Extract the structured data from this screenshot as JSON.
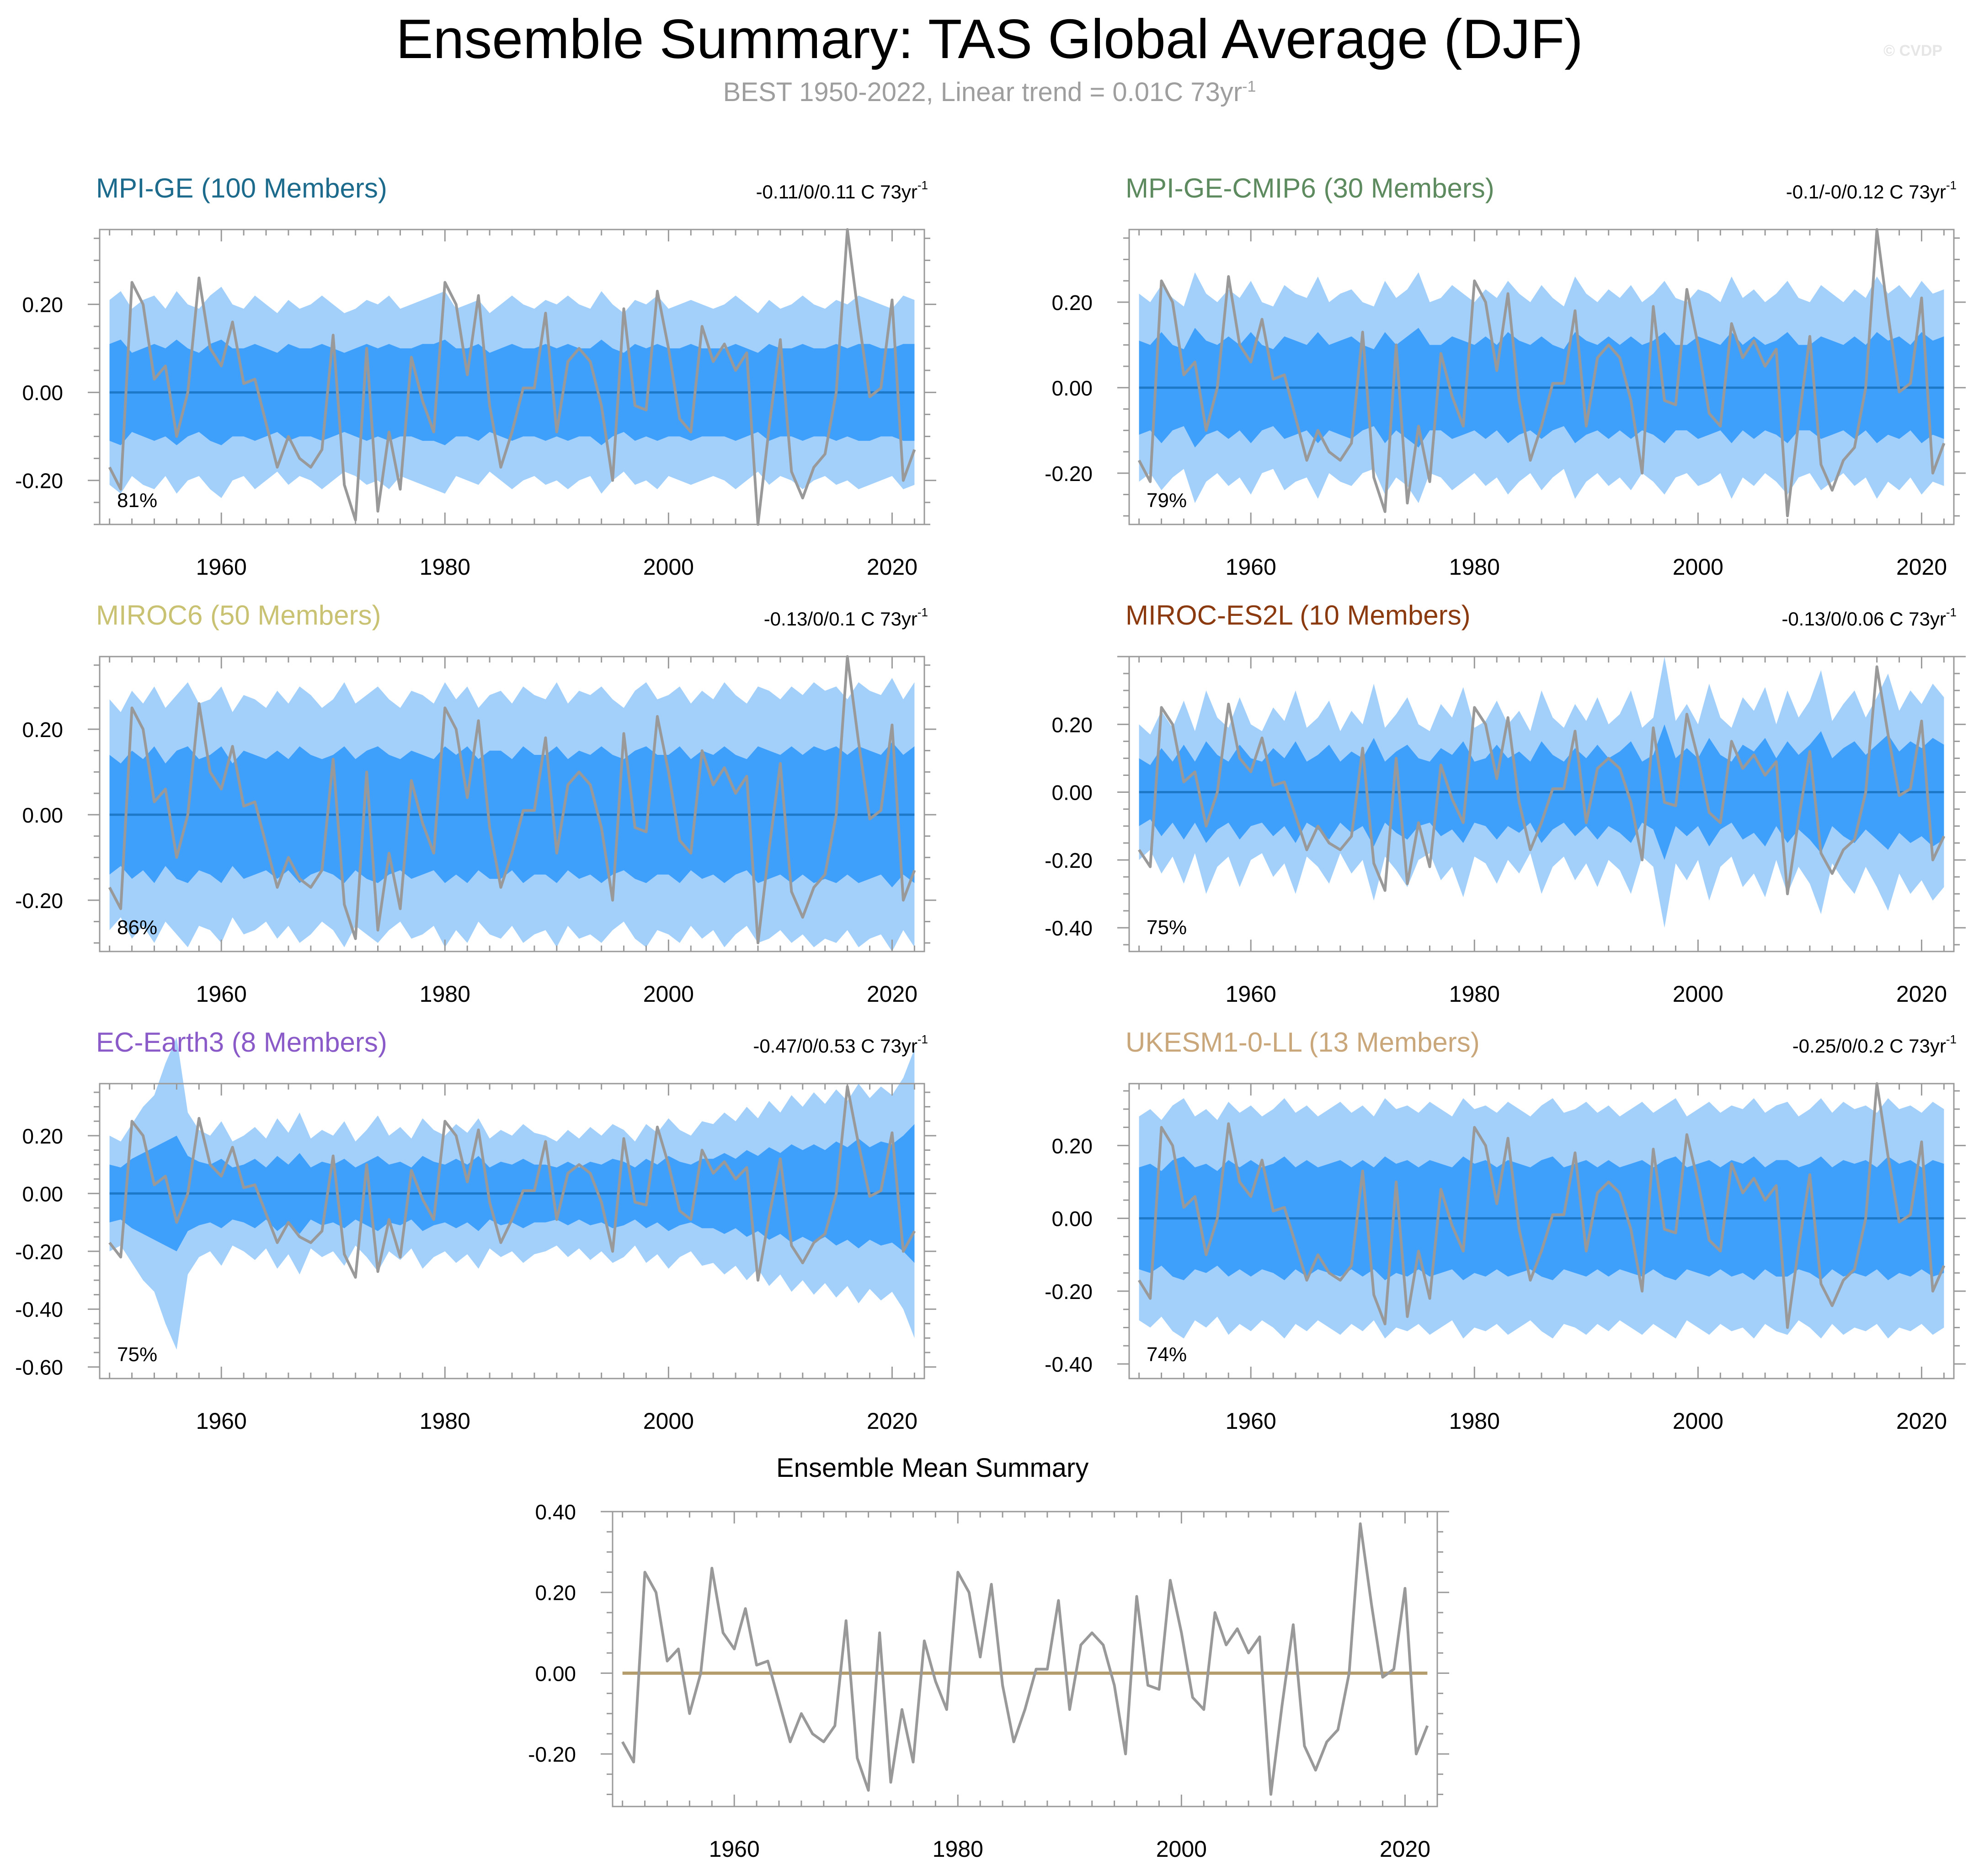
{
  "header": {
    "title": "Ensemble Summary: TAS Global Average (DJF)",
    "subtitle": "BEST 1950-2022, Linear trend = 0.01C 73yr",
    "subtitle_sup": "-1",
    "credit": "© CVDP"
  },
  "colors": {
    "outer_band": "#a3d0fb",
    "inner_band": "#3fa0fc",
    "ensemble_line": "#1e78c8",
    "obs_line": "#999999",
    "summary_zero_line": "#b59c6c",
    "frame": "#9a9a9a"
  },
  "chart_data": [
    {
      "type": "area",
      "title": "MPI-GE (100 Members)",
      "title_color": "#1c6a8c",
      "trend_label": "-0.11/0/0.11 C 73yr",
      "trend_sup": "-1",
      "percent_label": "81%",
      "xlim": [
        1950,
        2022
      ],
      "ylim": [
        -0.3,
        0.37
      ],
      "yticks": [
        -0.2,
        0.0,
        0.2
      ],
      "ytick_labels": [
        "-0.20",
        "0.00",
        "0.20"
      ],
      "xticks": [
        1960,
        1980,
        2000,
        2020
      ],
      "outer_halfwidth": [
        0.21,
        0.23,
        0.19,
        0.21,
        0.22,
        0.19,
        0.23,
        0.2,
        0.19,
        0.22,
        0.24,
        0.2,
        0.19,
        0.22,
        0.2,
        0.18,
        0.21,
        0.19,
        0.2,
        0.22,
        0.2,
        0.18,
        0.19,
        0.21,
        0.2,
        0.22,
        0.19,
        0.2,
        0.21,
        0.22,
        0.23,
        0.19,
        0.2,
        0.21,
        0.18,
        0.2,
        0.22,
        0.2,
        0.19,
        0.21,
        0.2,
        0.22,
        0.2,
        0.19,
        0.23,
        0.2,
        0.18,
        0.21,
        0.2,
        0.22,
        0.19,
        0.2,
        0.21,
        0.2,
        0.19,
        0.2,
        0.22,
        0.2,
        0.18,
        0.21,
        0.19,
        0.2,
        0.22,
        0.2,
        0.19,
        0.21,
        0.2,
        0.22,
        0.21,
        0.2,
        0.19,
        0.22,
        0.21
      ],
      "inner_halfwidth": [
        0.11,
        0.12,
        0.09,
        0.1,
        0.11,
        0.1,
        0.12,
        0.1,
        0.09,
        0.11,
        0.12,
        0.1,
        0.1,
        0.11,
        0.1,
        0.09,
        0.11,
        0.1,
        0.1,
        0.11,
        0.1,
        0.09,
        0.1,
        0.11,
        0.1,
        0.11,
        0.1,
        0.1,
        0.11,
        0.11,
        0.12,
        0.1,
        0.1,
        0.11,
        0.09,
        0.1,
        0.11,
        0.1,
        0.1,
        0.11,
        0.1,
        0.11,
        0.1,
        0.1,
        0.12,
        0.1,
        0.09,
        0.11,
        0.1,
        0.11,
        0.1,
        0.1,
        0.11,
        0.1,
        0.1,
        0.1,
        0.11,
        0.1,
        0.09,
        0.11,
        0.1,
        0.1,
        0.11,
        0.1,
        0.1,
        0.11,
        0.1,
        0.11,
        0.11,
        0.1,
        0.1,
        0.11,
        0.11
      ]
    },
    {
      "type": "area",
      "title": "MPI-GE-CMIP6 (30 Members)",
      "title_color": "#5d8a5e",
      "trend_label": "-0.1/-0/0.12 C 73yr",
      "trend_sup": "-1",
      "percent_label": "79%",
      "xlim": [
        1950,
        2022
      ],
      "ylim": [
        -0.32,
        0.37
      ],
      "yticks": [
        -0.2,
        0.0,
        0.2
      ],
      "ytick_labels": [
        "-0.20",
        "0.00",
        "0.20"
      ],
      "xticks": [
        1960,
        1980,
        2000,
        2020
      ],
      "outer_halfwidth": [
        0.22,
        0.2,
        0.24,
        0.21,
        0.19,
        0.27,
        0.22,
        0.2,
        0.23,
        0.21,
        0.25,
        0.2,
        0.19,
        0.24,
        0.22,
        0.21,
        0.26,
        0.2,
        0.22,
        0.23,
        0.2,
        0.19,
        0.25,
        0.21,
        0.23,
        0.27,
        0.2,
        0.21,
        0.24,
        0.22,
        0.2,
        0.23,
        0.21,
        0.25,
        0.22,
        0.2,
        0.24,
        0.21,
        0.19,
        0.26,
        0.22,
        0.2,
        0.23,
        0.21,
        0.24,
        0.2,
        0.22,
        0.25,
        0.21,
        0.2,
        0.23,
        0.22,
        0.2,
        0.26,
        0.21,
        0.23,
        0.2,
        0.22,
        0.25,
        0.21,
        0.2,
        0.24,
        0.22,
        0.2,
        0.23,
        0.21,
        0.26,
        0.22,
        0.24,
        0.21,
        0.25,
        0.22,
        0.23
      ],
      "inner_halfwidth": [
        0.11,
        0.1,
        0.13,
        0.1,
        0.09,
        0.14,
        0.11,
        0.1,
        0.12,
        0.1,
        0.13,
        0.1,
        0.09,
        0.12,
        0.11,
        0.1,
        0.13,
        0.1,
        0.11,
        0.12,
        0.1,
        0.09,
        0.13,
        0.1,
        0.12,
        0.14,
        0.1,
        0.1,
        0.12,
        0.11,
        0.1,
        0.12,
        0.1,
        0.13,
        0.11,
        0.1,
        0.12,
        0.1,
        0.09,
        0.13,
        0.11,
        0.1,
        0.12,
        0.1,
        0.12,
        0.1,
        0.11,
        0.13,
        0.1,
        0.1,
        0.12,
        0.11,
        0.1,
        0.13,
        0.1,
        0.12,
        0.1,
        0.11,
        0.13,
        0.1,
        0.1,
        0.12,
        0.11,
        0.1,
        0.12,
        0.1,
        0.13,
        0.11,
        0.12,
        0.1,
        0.13,
        0.11,
        0.12
      ]
    },
    {
      "type": "area",
      "title": "MIROC6 (50 Members)",
      "title_color": "#c9c273",
      "trend_label": "-0.13/0/0.1 C 73yr",
      "trend_sup": "-1",
      "percent_label": "86%",
      "xlim": [
        1950,
        2022
      ],
      "ylim": [
        -0.32,
        0.37
      ],
      "yticks": [
        -0.2,
        0.0,
        0.2
      ],
      "ytick_labels": [
        "-0.20",
        "0.00",
        "0.20"
      ],
      "xticks": [
        1960,
        1980,
        2000,
        2020
      ],
      "outer_halfwidth": [
        0.27,
        0.24,
        0.29,
        0.26,
        0.3,
        0.25,
        0.28,
        0.31,
        0.26,
        0.27,
        0.3,
        0.24,
        0.28,
        0.27,
        0.25,
        0.29,
        0.26,
        0.3,
        0.28,
        0.25,
        0.27,
        0.31,
        0.26,
        0.28,
        0.3,
        0.27,
        0.25,
        0.29,
        0.28,
        0.26,
        0.31,
        0.27,
        0.3,
        0.25,
        0.28,
        0.29,
        0.26,
        0.3,
        0.28,
        0.27,
        0.31,
        0.26,
        0.29,
        0.28,
        0.3,
        0.27,
        0.25,
        0.29,
        0.31,
        0.27,
        0.28,
        0.3,
        0.26,
        0.29,
        0.27,
        0.31,
        0.28,
        0.26,
        0.3,
        0.29,
        0.27,
        0.3,
        0.28,
        0.31,
        0.29,
        0.3,
        0.27,
        0.31,
        0.29,
        0.28,
        0.32,
        0.27,
        0.31
      ],
      "inner_halfwidth": [
        0.14,
        0.12,
        0.15,
        0.13,
        0.16,
        0.12,
        0.15,
        0.16,
        0.13,
        0.14,
        0.16,
        0.12,
        0.15,
        0.14,
        0.13,
        0.15,
        0.13,
        0.16,
        0.14,
        0.13,
        0.14,
        0.16,
        0.13,
        0.15,
        0.16,
        0.14,
        0.13,
        0.15,
        0.14,
        0.13,
        0.16,
        0.14,
        0.16,
        0.13,
        0.15,
        0.15,
        0.13,
        0.16,
        0.14,
        0.14,
        0.16,
        0.13,
        0.15,
        0.14,
        0.16,
        0.14,
        0.13,
        0.15,
        0.16,
        0.14,
        0.14,
        0.16,
        0.13,
        0.15,
        0.14,
        0.16,
        0.14,
        0.13,
        0.16,
        0.15,
        0.14,
        0.16,
        0.14,
        0.16,
        0.15,
        0.16,
        0.14,
        0.16,
        0.15,
        0.14,
        0.17,
        0.14,
        0.16
      ]
    },
    {
      "type": "area",
      "title": "MIROC-ES2L (10 Members)",
      "title_color": "#8b3a0f",
      "trend_label": "-0.13/0/0.06 C 73yr",
      "trend_sup": "-1",
      "percent_label": "75%",
      "xlim": [
        1950,
        2022
      ],
      "ylim": [
        -0.47,
        0.4
      ],
      "yticks": [
        -0.4,
        -0.2,
        0.0,
        0.2
      ],
      "ytick_labels": [
        "-0.40",
        "-0.20",
        "0.00",
        "0.20"
      ],
      "xticks": [
        1960,
        1980,
        2000,
        2020
      ],
      "outer_halfwidth": [
        0.2,
        0.17,
        0.24,
        0.19,
        0.27,
        0.18,
        0.3,
        0.22,
        0.19,
        0.28,
        0.2,
        0.18,
        0.25,
        0.21,
        0.3,
        0.19,
        0.22,
        0.27,
        0.18,
        0.24,
        0.2,
        0.32,
        0.19,
        0.23,
        0.28,
        0.2,
        0.18,
        0.26,
        0.22,
        0.31,
        0.19,
        0.21,
        0.27,
        0.2,
        0.24,
        0.18,
        0.3,
        0.22,
        0.19,
        0.26,
        0.21,
        0.28,
        0.2,
        0.23,
        0.3,
        0.19,
        0.22,
        0.4,
        0.21,
        0.26,
        0.2,
        0.32,
        0.22,
        0.19,
        0.28,
        0.24,
        0.31,
        0.2,
        0.3,
        0.22,
        0.27,
        0.36,
        0.21,
        0.26,
        0.3,
        0.22,
        0.28,
        0.35,
        0.24,
        0.3,
        0.26,
        0.32,
        0.28
      ],
      "inner_halfwidth": [
        0.1,
        0.08,
        0.13,
        0.09,
        0.14,
        0.09,
        0.15,
        0.11,
        0.09,
        0.14,
        0.1,
        0.09,
        0.13,
        0.1,
        0.15,
        0.09,
        0.11,
        0.14,
        0.09,
        0.12,
        0.1,
        0.16,
        0.09,
        0.12,
        0.14,
        0.1,
        0.09,
        0.13,
        0.11,
        0.15,
        0.09,
        0.1,
        0.14,
        0.1,
        0.12,
        0.09,
        0.15,
        0.11,
        0.09,
        0.13,
        0.1,
        0.14,
        0.1,
        0.12,
        0.15,
        0.09,
        0.11,
        0.2,
        0.1,
        0.13,
        0.1,
        0.16,
        0.11,
        0.09,
        0.14,
        0.12,
        0.16,
        0.1,
        0.15,
        0.11,
        0.14,
        0.18,
        0.1,
        0.13,
        0.15,
        0.11,
        0.14,
        0.17,
        0.12,
        0.15,
        0.13,
        0.16,
        0.14
      ]
    },
    {
      "type": "area",
      "title": "EC-Earth3 (8 Members)",
      "title_color": "#8a5bc8",
      "trend_label": "-0.47/0/0.53 C 73yr",
      "trend_sup": "-1",
      "percent_label": "75%",
      "xlim": [
        1950,
        2022
      ],
      "ylim": [
        -0.64,
        0.38
      ],
      "yticks": [
        -0.6,
        -0.4,
        -0.2,
        0.0,
        0.2
      ],
      "ytick_labels": [
        "-0.60",
        "-0.40",
        "-0.20",
        "0.00",
        "0.20"
      ],
      "xticks": [
        1960,
        1980,
        2000,
        2020
      ],
      "outer_halfwidth": [
        0.2,
        0.18,
        0.24,
        0.3,
        0.34,
        0.45,
        0.54,
        0.28,
        0.22,
        0.2,
        0.25,
        0.18,
        0.2,
        0.23,
        0.19,
        0.26,
        0.21,
        0.28,
        0.19,
        0.22,
        0.2,
        0.25,
        0.18,
        0.22,
        0.27,
        0.2,
        0.23,
        0.19,
        0.26,
        0.22,
        0.2,
        0.24,
        0.21,
        0.26,
        0.19,
        0.22,
        0.2,
        0.24,
        0.21,
        0.2,
        0.18,
        0.22,
        0.19,
        0.23,
        0.2,
        0.24,
        0.22,
        0.18,
        0.24,
        0.21,
        0.26,
        0.22,
        0.2,
        0.25,
        0.24,
        0.28,
        0.25,
        0.3,
        0.26,
        0.32,
        0.28,
        0.34,
        0.3,
        0.35,
        0.31,
        0.36,
        0.32,
        0.38,
        0.33,
        0.37,
        0.34,
        0.4,
        0.5
      ],
      "inner_halfwidth": [
        0.1,
        0.09,
        0.12,
        0.14,
        0.16,
        0.18,
        0.2,
        0.13,
        0.11,
        0.1,
        0.12,
        0.09,
        0.1,
        0.12,
        0.09,
        0.13,
        0.1,
        0.14,
        0.09,
        0.11,
        0.1,
        0.12,
        0.09,
        0.11,
        0.13,
        0.1,
        0.11,
        0.09,
        0.13,
        0.11,
        0.1,
        0.12,
        0.1,
        0.13,
        0.09,
        0.11,
        0.1,
        0.12,
        0.1,
        0.1,
        0.09,
        0.11,
        0.09,
        0.11,
        0.1,
        0.12,
        0.11,
        0.09,
        0.12,
        0.1,
        0.13,
        0.11,
        0.1,
        0.12,
        0.12,
        0.14,
        0.12,
        0.15,
        0.13,
        0.16,
        0.14,
        0.17,
        0.15,
        0.17,
        0.15,
        0.18,
        0.16,
        0.19,
        0.16,
        0.18,
        0.17,
        0.2,
        0.24
      ]
    },
    {
      "type": "area",
      "title": "UKESM1-0-LL (13 Members)",
      "title_color": "#c9a77b",
      "trend_label": "-0.25/0/0.2 C 73yr",
      "trend_sup": "-1",
      "percent_label": "74%",
      "xlim": [
        1950,
        2022
      ],
      "ylim": [
        -0.44,
        0.37
      ],
      "yticks": [
        -0.4,
        -0.2,
        0.0,
        0.2
      ],
      "ytick_labels": [
        "-0.40",
        "-0.20",
        "0.00",
        "0.20"
      ],
      "xticks": [
        1960,
        1980,
        2000,
        2020
      ],
      "outer_halfwidth": [
        0.28,
        0.3,
        0.27,
        0.31,
        0.33,
        0.28,
        0.3,
        0.27,
        0.32,
        0.29,
        0.31,
        0.28,
        0.3,
        0.33,
        0.29,
        0.31,
        0.28,
        0.3,
        0.32,
        0.29,
        0.31,
        0.28,
        0.33,
        0.3,
        0.31,
        0.29,
        0.32,
        0.3,
        0.28,
        0.33,
        0.3,
        0.31,
        0.29,
        0.32,
        0.3,
        0.28,
        0.31,
        0.33,
        0.29,
        0.3,
        0.32,
        0.29,
        0.31,
        0.28,
        0.3,
        0.32,
        0.29,
        0.31,
        0.33,
        0.28,
        0.3,
        0.32,
        0.29,
        0.31,
        0.3,
        0.33,
        0.29,
        0.31,
        0.32,
        0.28,
        0.3,
        0.33,
        0.29,
        0.32,
        0.3,
        0.31,
        0.29,
        0.33,
        0.3,
        0.31,
        0.29,
        0.32,
        0.3
      ],
      "inner_halfwidth": [
        0.14,
        0.15,
        0.13,
        0.16,
        0.17,
        0.14,
        0.15,
        0.13,
        0.16,
        0.14,
        0.16,
        0.14,
        0.15,
        0.17,
        0.14,
        0.16,
        0.14,
        0.15,
        0.16,
        0.14,
        0.16,
        0.14,
        0.17,
        0.15,
        0.16,
        0.14,
        0.16,
        0.15,
        0.14,
        0.17,
        0.15,
        0.16,
        0.14,
        0.16,
        0.15,
        0.14,
        0.16,
        0.17,
        0.14,
        0.15,
        0.16,
        0.14,
        0.16,
        0.14,
        0.15,
        0.16,
        0.14,
        0.16,
        0.17,
        0.14,
        0.15,
        0.16,
        0.14,
        0.16,
        0.15,
        0.17,
        0.14,
        0.16,
        0.16,
        0.14,
        0.15,
        0.17,
        0.14,
        0.16,
        0.15,
        0.16,
        0.14,
        0.17,
        0.15,
        0.16,
        0.14,
        0.16,
        0.15
      ]
    },
    {
      "type": "line",
      "title": "Ensemble Mean Summary",
      "title_color": "#000000",
      "xlim": [
        1950,
        2022
      ],
      "ylim": [
        -0.33,
        0.4
      ],
      "yticks": [
        -0.2,
        0.0,
        0.2,
        0.4
      ],
      "ytick_labels": [
        "-0.20",
        "0.00",
        "0.20",
        "0.40"
      ],
      "xticks": [
        1960,
        1980,
        2000,
        2020
      ],
      "zero_line": 0.0
    }
  ],
  "observations": {
    "name": "BEST",
    "years": [
      1950,
      1951,
      1952,
      1953,
      1954,
      1955,
      1956,
      1957,
      1958,
      1959,
      1960,
      1961,
      1962,
      1963,
      1964,
      1965,
      1966,
      1967,
      1968,
      1969,
      1970,
      1971,
      1972,
      1973,
      1974,
      1975,
      1976,
      1977,
      1978,
      1979,
      1980,
      1981,
      1982,
      1983,
      1984,
      1985,
      1986,
      1987,
      1988,
      1989,
      1990,
      1991,
      1992,
      1993,
      1994,
      1995,
      1996,
      1997,
      1998,
      1999,
      2000,
      2001,
      2002,
      2003,
      2004,
      2005,
      2006,
      2007,
      2008,
      2009,
      2010,
      2011,
      2012,
      2013,
      2014,
      2015,
      2016,
      2017,
      2018,
      2019,
      2020,
      2021,
      2022
    ],
    "values": [
      -0.17,
      -0.22,
      0.25,
      0.2,
      0.03,
      0.06,
      -0.1,
      0.0,
      0.26,
      0.1,
      0.06,
      0.16,
      0.02,
      0.03,
      -0.07,
      -0.17,
      -0.1,
      -0.15,
      -0.17,
      -0.13,
      0.13,
      -0.21,
      -0.29,
      0.1,
      -0.27,
      -0.09,
      -0.22,
      0.08,
      -0.02,
      -0.09,
      0.25,
      0.2,
      0.04,
      0.22,
      -0.03,
      -0.17,
      -0.09,
      0.01,
      0.01,
      0.18,
      -0.09,
      0.07,
      0.1,
      0.07,
      -0.03,
      -0.2,
      0.19,
      -0.03,
      -0.04,
      0.23,
      0.1,
      -0.06,
      -0.09,
      0.15,
      0.07,
      0.11,
      0.05,
      0.09,
      -0.3,
      -0.08,
      0.12,
      -0.18,
      -0.24,
      -0.17,
      -0.14,
      0.0,
      0.37,
      0.17,
      -0.01,
      0.01,
      0.21,
      -0.2,
      -0.13
    ]
  }
}
